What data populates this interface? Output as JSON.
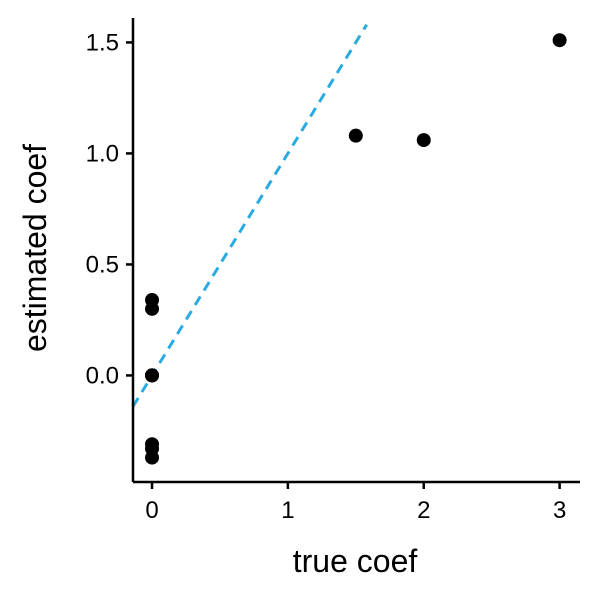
{
  "chart_data": {
    "type": "scatter",
    "xlabel": "true coef",
    "ylabel": "estimated coef",
    "xlim": [
      -0.14,
      3.15
    ],
    "ylim": [
      -0.48,
      1.61
    ],
    "x_ticks": [
      0,
      1,
      2,
      3
    ],
    "x_tick_labels": [
      "0",
      "1",
      "2",
      "3"
    ],
    "y_ticks": [
      0.0,
      0.5,
      1.0,
      1.5
    ],
    "y_tick_labels": [
      "0.0",
      "0.5",
      "1.0",
      "1.5"
    ],
    "grid": false,
    "point_color": "#000000",
    "points": [
      {
        "x": 0,
        "y": 0.34
      },
      {
        "x": 0,
        "y": 0.3
      },
      {
        "x": 0,
        "y": 0.0
      },
      {
        "x": 0,
        "y": 0.0
      },
      {
        "x": 0,
        "y": 0.0
      },
      {
        "x": 0,
        "y": -0.31
      },
      {
        "x": 0,
        "y": -0.33
      },
      {
        "x": 0,
        "y": -0.37
      },
      {
        "x": 1.5,
        "y": 1.08
      },
      {
        "x": 2,
        "y": 1.06
      },
      {
        "x": 3,
        "y": 1.51
      }
    ],
    "reference_line": {
      "slope": 1,
      "intercept": 0,
      "style": "dashed",
      "color": "#29ABE2",
      "x_range": [
        -0.14,
        1.58
      ]
    }
  }
}
